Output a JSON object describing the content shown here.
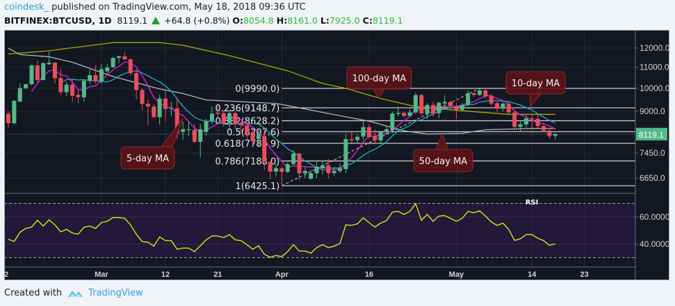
{
  "header": {
    "author": "coindesk_",
    "published": " published on TradingView.com, May 18, 2018 09:36 UTC",
    "symbol": "BITFINEX:BTCUSD, 1D",
    "last": "8119.1",
    "change": "+64.8 (+0.8%)",
    "o_label": "O:",
    "o": "8054.8",
    "h_label": "H:",
    "h": "8161.0",
    "l_label": "L:",
    "l": "7925.0",
    "c_label": "C:",
    "c": "8119.1",
    "change_icon": "up-triangle-icon"
  },
  "footer": {
    "created_with": "Created with",
    "brand": "TradingView",
    "logo_icon": "tradingview-cloud-icon"
  },
  "colors": {
    "background": "#131722",
    "rsi_band": "#21183a",
    "up": "#53b987",
    "down": "#eb4d5c",
    "ma5": "#e020e0",
    "ma10": "#20b0c0",
    "ma50": "#b8b8b8",
    "ma100": "#b0a800",
    "rsi": "#e8e010",
    "callout": "#5a1418",
    "price_tag": "#53b987"
  },
  "chart_data": {
    "type": "candlestick",
    "symbol": "BITFINEX:BTCUSD",
    "interval": "1D",
    "price_scale": "log",
    "y_ticks": [
      "12000.0",
      "11000.0",
      "10000.0",
      "9000.0",
      "7450.0",
      "6650.0"
    ],
    "y_tick_values": [
      12000,
      11000,
      10000,
      9000,
      7450,
      6650
    ],
    "x_ticks": [
      {
        "label": "2",
        "date": "2018-02-12"
      },
      {
        "label": "Mar",
        "date": "2018-03-01"
      },
      {
        "label": "12",
        "date": "2018-03-12"
      },
      {
        "label": "21",
        "date": "2018-03-21"
      },
      {
        "label": "Apr",
        "date": "2018-04-01"
      },
      {
        "label": "16",
        "date": "2018-04-16"
      },
      {
        "label": "May",
        "date": "2018-05-01"
      },
      {
        "label": "14",
        "date": "2018-05-14"
      },
      {
        "label": "23",
        "date": "2018-05-23"
      }
    ],
    "grid": true,
    "last_price_tag": "8119.1",
    "candles_columns": [
      "date",
      "open",
      "high",
      "low",
      "close"
    ],
    "candles": [
      [
        "2018-02-13",
        8910,
        9000,
        8370,
        8530
      ],
      [
        "2018-02-14",
        8530,
        9480,
        8500,
        9440
      ],
      [
        "2018-02-15",
        9410,
        10216,
        9400,
        10000
      ],
      [
        "2018-02-16",
        10000,
        10216,
        9950,
        10180
      ],
      [
        "2018-02-17",
        10180,
        11140,
        10130,
        11090
      ],
      [
        "2018-02-18",
        11090,
        11340,
        10220,
        10380
      ],
      [
        "2018-02-19",
        10380,
        11230,
        10350,
        11205
      ],
      [
        "2018-02-20",
        11150,
        11800,
        11100,
        11230
      ],
      [
        "2018-02-21",
        11230,
        11250,
        10216,
        10460
      ],
      [
        "2018-02-22",
        10470,
        10900,
        9700,
        9820
      ],
      [
        "2018-02-23",
        9820,
        10280,
        9650,
        10160
      ],
      [
        "2018-02-24",
        10160,
        10420,
        9400,
        9660
      ],
      [
        "2018-02-25",
        9700,
        9900,
        9330,
        9600
      ],
      [
        "2018-02-26",
        9590,
        10400,
        9400,
        10345
      ],
      [
        "2018-02-27",
        10345,
        10900,
        10200,
        10610
      ],
      [
        "2018-02-28",
        10610,
        11090,
        10200,
        10320
      ],
      [
        "2018-03-01",
        10300,
        11150,
        10200,
        10900
      ],
      [
        "2018-03-02",
        10800,
        11150,
        10700,
        10980
      ],
      [
        "2018-03-03",
        11000,
        11520,
        10950,
        11470
      ],
      [
        "2018-03-04",
        11470,
        11570,
        11200,
        11560
      ],
      [
        "2018-03-05",
        11560,
        11750,
        11370,
        11400
      ],
      [
        "2018-03-06",
        11400,
        11450,
        10600,
        10710
      ],
      [
        "2018-03-07",
        10710,
        10900,
        9500,
        9920
      ],
      [
        "2018-03-08",
        9920,
        10000,
        9050,
        9315
      ],
      [
        "2018-03-09",
        9320,
        9500,
        8470,
        9200
      ],
      [
        "2018-03-10",
        9200,
        9300,
        8700,
        8770
      ],
      [
        "2018-03-11",
        8770,
        9700,
        8480,
        9540
      ],
      [
        "2018-03-12",
        9540,
        9900,
        8600,
        9100
      ],
      [
        "2018-03-13",
        9100,
        9400,
        8800,
        9130
      ],
      [
        "2018-03-14",
        9130,
        9600,
        7938,
        8150
      ],
      [
        "2018-03-15",
        8200,
        8600,
        7900,
        8300
      ],
      [
        "2018-03-16",
        8270,
        8600,
        8050,
        8300
      ],
      [
        "2018-03-17",
        8280,
        8500,
        7800,
        7840
      ],
      [
        "2018-03-18",
        7840,
        8500,
        7300,
        8300
      ],
      [
        "2018-03-19",
        8200,
        8700,
        8050,
        8616
      ],
      [
        "2018-03-20",
        8600,
        9200,
        8500,
        8912
      ],
      [
        "2018-03-21",
        8950,
        9200,
        8700,
        8900
      ],
      [
        "2018-03-22",
        8930,
        9050,
        8400,
        8540
      ],
      [
        "2018-03-23",
        8540,
        9100,
        8250,
        8930
      ],
      [
        "2018-03-24",
        8930,
        9000,
        8300,
        8500
      ],
      [
        "2018-03-25",
        8530,
        8600,
        8200,
        8450
      ],
      [
        "2018-03-26",
        8450,
        8600,
        7900,
        8150
      ],
      [
        "2018-03-27",
        8190,
        8300,
        7700,
        7860
      ],
      [
        "2018-03-28",
        7940,
        8300,
        7700,
        8080
      ],
      [
        "2018-03-29",
        8050,
        8300,
        6900,
        7160
      ],
      [
        "2018-03-30",
        7150,
        7200,
        6610,
        6850
      ],
      [
        "2018-03-31",
        6850,
        7100,
        6700,
        6960
      ],
      [
        "2018-04-01",
        6950,
        7000,
        6425.1,
        6840
      ],
      [
        "2018-04-02",
        6840,
        7150,
        6800,
        7085
      ],
      [
        "2018-04-03",
        7090,
        7550,
        7050,
        7430
      ],
      [
        "2018-04-04",
        7430,
        7450,
        6600,
        6795
      ],
      [
        "2018-04-05",
        6800,
        7000,
        6650,
        6870
      ],
      [
        "2018-04-06",
        6630,
        6900,
        6600,
        6800
      ],
      [
        "2018-04-07",
        6800,
        7200,
        6650,
        7010
      ],
      [
        "2018-04-08",
        6950,
        7200,
        6750,
        7050
      ],
      [
        "2018-04-09",
        7050,
        7250,
        6650,
        6800
      ],
      [
        "2018-04-10",
        6800,
        7000,
        6720,
        6870
      ],
      [
        "2018-04-11",
        6870,
        7100,
        6800,
        6950
      ],
      [
        "2018-04-12",
        6930,
        8100,
        6800,
        7938
      ],
      [
        "2018-04-13",
        7940,
        8200,
        7800,
        7900
      ],
      [
        "2018-04-14",
        7900,
        8100,
        7800,
        8020
      ],
      [
        "2018-04-15",
        8030,
        8600,
        7900,
        8383
      ],
      [
        "2018-04-16",
        8380,
        8500,
        7950,
        8010
      ],
      [
        "2018-04-17",
        8050,
        8300,
        7800,
        7890
      ],
      [
        "2018-04-18",
        7890,
        8200,
        7800,
        8190
      ],
      [
        "2018-04-19",
        8190,
        8450,
        8100,
        8300
      ],
      [
        "2018-04-20",
        8270,
        9000,
        8150,
        8910
      ],
      [
        "2018-04-21",
        8900,
        9200,
        8800,
        8940
      ],
      [
        "2018-04-22",
        8940,
        9000,
        8750,
        8820
      ],
      [
        "2018-04-23",
        8820,
        9100,
        8800,
        8960
      ],
      [
        "2018-04-24",
        8960,
        9800,
        8900,
        9690
      ],
      [
        "2018-04-25",
        9690,
        9750,
        8850,
        8920
      ],
      [
        "2018-04-26",
        8900,
        9350,
        8700,
        9270
      ],
      [
        "2018-04-27",
        9270,
        9400,
        8800,
        8910
      ],
      [
        "2018-04-28",
        8930,
        9400,
        8730,
        9360
      ],
      [
        "2018-04-29",
        9330,
        9700,
        9100,
        9400
      ],
      [
        "2018-04-30",
        9400,
        9450,
        9100,
        9230
      ],
      [
        "2018-05-01",
        9230,
        9350,
        8700,
        9060
      ],
      [
        "2018-05-02",
        9060,
        9350,
        9000,
        9270
      ],
      [
        "2018-05-03",
        9270,
        9900,
        9200,
        9775
      ],
      [
        "2018-05-04",
        9780,
        9800,
        9600,
        9700
      ],
      [
        "2018-05-05",
        9700,
        9990,
        9650,
        9900
      ],
      [
        "2018-05-06",
        9900,
        9990,
        9550,
        9630
      ],
      [
        "2018-05-07",
        9640,
        9750,
        9250,
        9330
      ],
      [
        "2018-05-08",
        9340,
        9400,
        9000,
        9120
      ],
      [
        "2018-05-09",
        9120,
        9400,
        9000,
        9320
      ],
      [
        "2018-05-10",
        9320,
        9400,
        8900,
        8960
      ],
      [
        "2018-05-11",
        8960,
        9000,
        8250,
        8390
      ],
      [
        "2018-05-12",
        8390,
        8600,
        8200,
        8490
      ],
      [
        "2018-05-13",
        8480,
        8850,
        8300,
        8720
      ],
      [
        "2018-05-14",
        8720,
        8910,
        8280,
        8680
      ],
      [
        "2018-05-15",
        8700,
        8860,
        8350,
        8420
      ],
      [
        "2018-05-16",
        8420,
        8500,
        8200,
        8250
      ],
      [
        "2018-05-17",
        8250,
        8300,
        7950,
        8050
      ],
      [
        "2018-05-18",
        8054.8,
        8161,
        7925,
        8119.1
      ]
    ],
    "moving_averages": {
      "ma100": [
        [
          "2018-02-13",
          11675
        ],
        [
          "2018-02-20",
          11850
        ],
        [
          "2018-03-03",
          12300
        ],
        [
          "2018-03-11",
          12300
        ],
        [
          "2018-03-15",
          12150
        ],
        [
          "2018-03-23",
          11590
        ],
        [
          "2018-04-02",
          10820
        ],
        [
          "2018-04-08",
          10216
        ],
        [
          "2018-04-12",
          9995
        ],
        [
          "2018-04-18",
          9540
        ],
        [
          "2018-04-24",
          9200
        ],
        [
          "2018-05-02",
          9025
        ],
        [
          "2018-05-10",
          8880
        ],
        [
          "2018-05-18",
          8880
        ]
      ],
      "ma50": [
        [
          "2018-02-13",
          11990
        ],
        [
          "2018-02-15",
          11650
        ],
        [
          "2018-02-20",
          11530
        ],
        [
          "2018-02-24",
          11250
        ],
        [
          "2018-03-03",
          10543
        ],
        [
          "2018-03-07",
          10250
        ],
        [
          "2018-03-11",
          9965
        ],
        [
          "2018-03-15",
          9760
        ],
        [
          "2018-03-19",
          9480
        ],
        [
          "2018-03-31",
          9330
        ],
        [
          "2018-04-02",
          9244
        ],
        [
          "2018-04-08",
          8960
        ],
        [
          "2018-04-16",
          8610
        ],
        [
          "2018-04-22",
          8240
        ],
        [
          "2018-04-26",
          8120
        ],
        [
          "2018-05-02",
          8150
        ],
        [
          "2018-05-06",
          8280
        ],
        [
          "2018-05-14",
          8330
        ],
        [
          "2018-05-18",
          8330
        ]
      ]
    },
    "fibonacci": [
      {
        "label": "0(9990.0)",
        "value": 9990.0
      },
      {
        "label": "0.236(9148.7)",
        "value": 9148.7
      },
      {
        "label": "0.382(8628.2)",
        "value": 8628.2
      },
      {
        "label": "0.5(8207.6)",
        "value": 8207.6
      },
      {
        "label": "0.618(7786.9)",
        "value": 7786.9
      },
      {
        "label": "0.786(7188.0)",
        "value": 7188.0
      },
      {
        "label": "1(6425.1)",
        "value": 6425.1
      }
    ],
    "fib_trendline": [
      [
        "2018-04-01",
        6425.1
      ],
      [
        "2018-05-05",
        9990.0
      ]
    ],
    "annotations": [
      {
        "text": "5-day MA",
        "target": "ma5"
      },
      {
        "text": "100-day MA",
        "target": "ma100"
      },
      {
        "text": "10-day MA",
        "target": "ma10"
      },
      {
        "text": "50-day MA",
        "target": "ma50"
      }
    ],
    "rsi": {
      "label": "RSI",
      "y_ticks": [
        "60.0000",
        "40.0000"
      ],
      "y_tick_values": [
        60,
        40
      ],
      "bands": [
        70,
        30
      ],
      "values": [
        43.6,
        41.9,
        48.7,
        51.6,
        52.5,
        57.6,
        53.3,
        57.9,
        54.2,
        49.1,
        50.8,
        48.2,
        47.3,
        52.5,
        53.3,
        51.6,
        55.9,
        56.8,
        59.6,
        59.6,
        59,
        54.2,
        47.3,
        41.9,
        41.4,
        38.5,
        45.3,
        42.6,
        42.6,
        36.2,
        37.1,
        37.1,
        34.5,
        38.8,
        43.1,
        46,
        46,
        44.8,
        47,
        43.1,
        42.6,
        39.6,
        36.2,
        38.8,
        32.5,
        30.3,
        31.6,
        30.8,
        34.5,
        39.6,
        34.9,
        34.9,
        33.3,
        37.4,
        39.6,
        37.4,
        38.5,
        40.5,
        54.2,
        53.8,
        55,
        59.3,
        55.9,
        52.5,
        55.5,
        57.3,
        63.6,
        64.1,
        61.9,
        64.1,
        69.9,
        57.6,
        61.9,
        56.8,
        60.7,
        61,
        59,
        56.8,
        59,
        64.1,
        63.1,
        64.5,
        60.7,
        56.4,
        53.8,
        55.4,
        50.8,
        42.7,
        43.9,
        47,
        47,
        44.3,
        42.6,
        39.1,
        40.2
      ]
    }
  }
}
